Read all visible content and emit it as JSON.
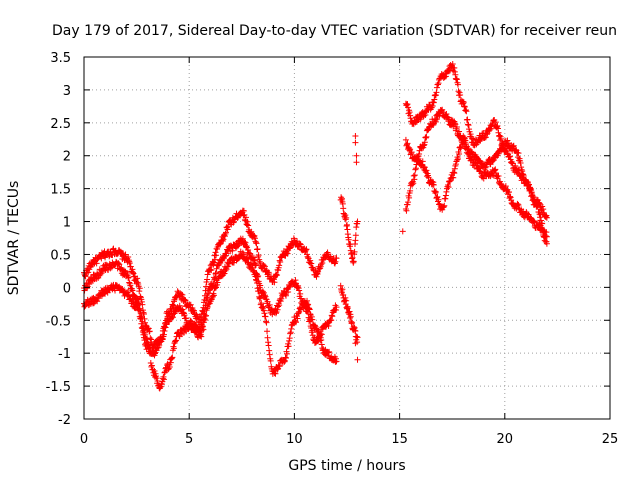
{
  "chart_data": {
    "type": "scatter",
    "title": "Day 179 of 2017, Sidereal Day-to-day VTEC variation (SDTVAR) for receiver reun",
    "xlabel": "GPS time / hours",
    "ylabel": "SDTVAR / TECUs",
    "xlim": [
      0,
      25
    ],
    "ylim": [
      -2,
      3.5
    ],
    "xticks": [
      0,
      5,
      10,
      15,
      20,
      25
    ],
    "yticks": [
      -2,
      -1.5,
      -1,
      -0.5,
      0,
      0.5,
      1,
      1.5,
      2,
      2.5,
      3,
      3.5
    ],
    "grid": true,
    "marker": "+",
    "color": "#ff0000",
    "series": [
      {
        "name": "trace-1",
        "x": [
          0,
          0.5,
          1,
          1.5,
          2,
          2.5,
          3,
          3.3,
          3.6,
          4,
          4.5,
          5,
          5.5,
          6,
          6.5,
          7,
          7.5,
          8,
          8.5,
          9,
          9.5,
          10,
          10.5,
          11,
          11.5,
          12
        ],
        "y": [
          0.2,
          0.4,
          0.5,
          0.55,
          0.45,
          0.1,
          -0.6,
          -0.9,
          -0.8,
          -0.4,
          -0.1,
          -0.3,
          -0.5,
          0.3,
          0.7,
          1.0,
          1.15,
          0.8,
          0.3,
          0.1,
          0.5,
          0.7,
          0.55,
          0.2,
          0.5,
          0.4
        ]
      },
      {
        "name": "trace-2",
        "x": [
          0,
          0.5,
          1,
          1.5,
          2,
          2.5,
          3,
          3.3,
          3.6,
          4,
          4.5,
          5,
          5.5,
          6,
          6.5,
          7,
          7.5,
          8,
          8.5,
          9,
          9.5,
          10,
          10.5,
          11,
          11.5,
          12
        ],
        "y": [
          0.0,
          0.15,
          0.3,
          0.35,
          0.2,
          -0.2,
          -0.8,
          -1.3,
          -1.5,
          -1.2,
          -0.7,
          -0.6,
          -0.75,
          -0.2,
          0.2,
          0.4,
          0.5,
          0.3,
          -0.3,
          -1.3,
          -1.1,
          -0.5,
          -0.2,
          -0.6,
          -1.0,
          -1.1
        ]
      },
      {
        "name": "trace-3",
        "x": [
          0,
          0.5,
          1,
          1.5,
          2,
          2.5,
          3,
          3.3,
          3.6,
          4,
          4.5,
          5,
          5.5,
          6,
          6.5,
          7,
          7.5,
          8,
          8.5,
          9,
          9.5,
          10,
          10.5,
          11,
          11.5,
          12
        ],
        "y": [
          -0.25,
          -0.2,
          -0.05,
          0.0,
          -0.1,
          -0.3,
          -0.9,
          -1.0,
          -0.85,
          -0.5,
          -0.3,
          -0.55,
          -0.65,
          0.0,
          0.4,
          0.6,
          0.7,
          0.45,
          -0.1,
          -0.4,
          -0.1,
          0.1,
          -0.3,
          -0.8,
          -0.6,
          -0.3
        ]
      },
      {
        "name": "trace-4",
        "x": [
          12.2,
          12.4,
          12.6,
          12.8,
          13.0
        ],
        "y": [
          1.35,
          1.1,
          0.7,
          0.4,
          1.0
        ]
      },
      {
        "name": "trace-5",
        "x": [
          12.2,
          12.4,
          12.6,
          12.8,
          13.0
        ],
        "y": [
          0.0,
          -0.2,
          -0.4,
          -0.6,
          -0.8
        ]
      },
      {
        "name": "trace-6",
        "x": [
          15.3,
          15.6,
          16.0,
          16.5,
          17.0,
          17.5,
          18.0,
          18.5,
          19.0,
          19.5,
          20.0,
          20.5,
          21.0,
          21.5,
          22.0
        ],
        "y": [
          2.8,
          2.5,
          2.6,
          2.75,
          3.2,
          3.35,
          2.8,
          2.2,
          2.3,
          2.5,
          2.1,
          1.8,
          1.6,
          1.3,
          1.1
        ]
      },
      {
        "name": "trace-7",
        "x": [
          15.3,
          15.6,
          16.0,
          16.5,
          17.0,
          17.5,
          18.0,
          18.5,
          19.0,
          19.5,
          20.0,
          20.5,
          21.0,
          21.5,
          22.0
        ],
        "y": [
          1.2,
          1.6,
          2.1,
          2.5,
          2.65,
          2.5,
          2.25,
          2.0,
          1.85,
          1.95,
          2.2,
          2.1,
          1.6,
          1.25,
          0.7
        ]
      },
      {
        "name": "trace-8",
        "x": [
          15.3,
          15.6,
          16.0,
          16.5,
          17.0,
          17.5,
          18.0,
          18.5,
          19.0,
          19.5,
          20.0,
          20.5,
          21.0,
          21.5,
          22.0
        ],
        "y": [
          2.2,
          2.0,
          1.9,
          1.6,
          1.2,
          1.7,
          2.2,
          1.9,
          1.7,
          1.75,
          1.5,
          1.25,
          1.1,
          0.95,
          0.8
        ]
      }
    ],
    "isolated_points": {
      "x": [
        12.9,
        12.9,
        12.95,
        12.95,
        13.0,
        15.15,
        12.9
      ],
      "y": [
        2.3,
        2.2,
        2.0,
        1.9,
        -1.1,
        0.85,
        -0.85
      ]
    }
  }
}
